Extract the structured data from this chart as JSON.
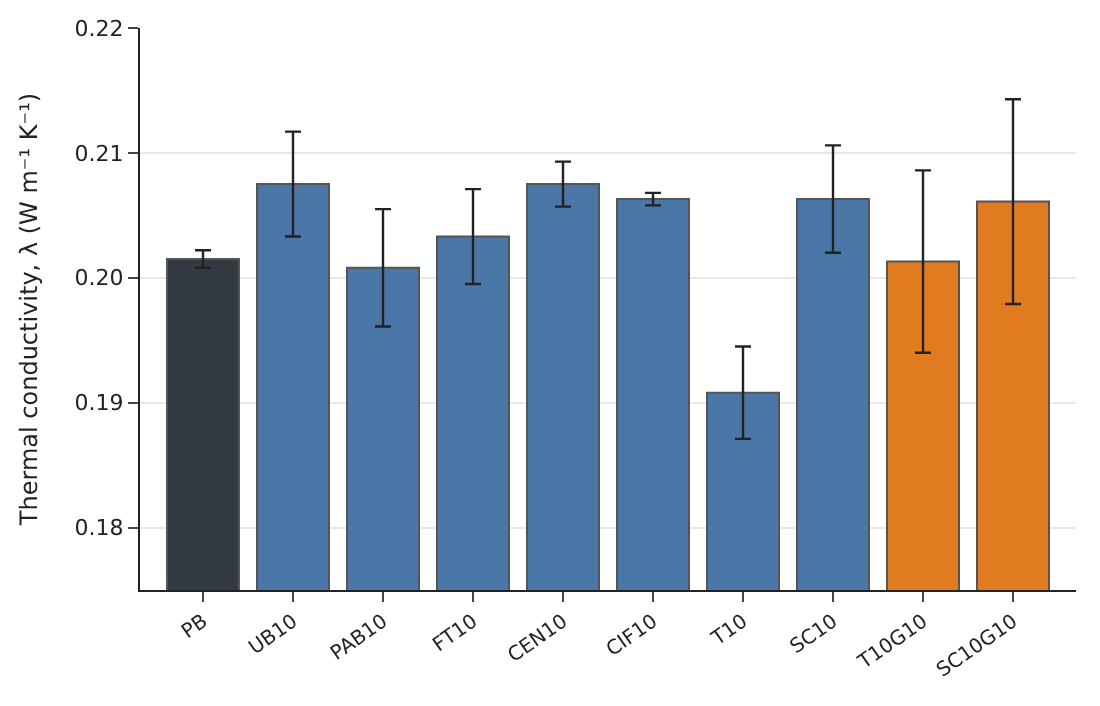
{
  "chart_data": {
    "type": "bar",
    "ylabel": "Thermal conductivity, λ (W m⁻¹ K⁻¹)",
    "categories": [
      "PB",
      "UB10",
      "PAB10",
      "FT10",
      "CEN10",
      "CIF10",
      "T10",
      "SC10",
      "T10G10",
      "SC10G10"
    ],
    "values": [
      0.2015,
      0.2075,
      0.2008,
      0.2033,
      0.2075,
      0.2063,
      0.1908,
      0.2063,
      0.2013,
      0.2061
    ],
    "errors": [
      0.0007,
      0.0042,
      0.0047,
      0.0038,
      0.0018,
      0.0005,
      0.0037,
      0.0043,
      0.0073,
      0.0082
    ],
    "colors": [
      "#343a42",
      "#4a77a8",
      "#4a77a8",
      "#4a77a8",
      "#4a77a8",
      "#4a77a8",
      "#4a77a8",
      "#4a77a8",
      "#e07b20",
      "#e07b20"
    ],
    "ylim": [
      0.175,
      0.22
    ],
    "yticks": [
      0.18,
      0.19,
      {
        "value": 0.2,
        "label": "0.20"
      },
      0.21,
      0.22
    ],
    "grid": "y"
  }
}
